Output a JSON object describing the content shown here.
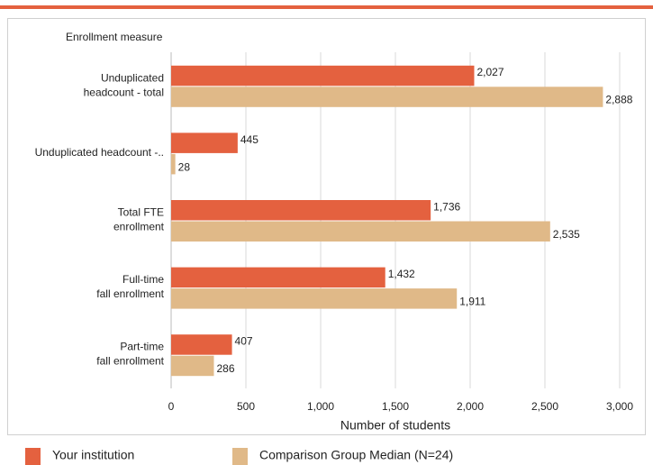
{
  "chart_data": {
    "type": "bar",
    "orientation": "horizontal",
    "title": "Enrollment measure",
    "xlabel": "Number of students",
    "categories": [
      "Unduplicated\nheadcount - total",
      "Unduplicated headcount -..",
      "Total FTE\nenrollment",
      "Full-time\nfall enrollment",
      "Part-time\nfall enrollment"
    ],
    "series": [
      {
        "name": "Your institution",
        "color": "#e4613f",
        "values": [
          2027,
          445,
          1736,
          1432,
          407
        ],
        "value_labels": [
          "2,027",
          "445",
          "1,736",
          "1,432",
          "407"
        ]
      },
      {
        "name": "Comparison Group Median (N=24)",
        "color": "#e0b988",
        "values": [
          2888,
          28,
          2535,
          1911,
          286
        ],
        "value_labels": [
          "2,888",
          "28",
          "2,535",
          "1,911",
          "286"
        ]
      }
    ],
    "xlim": [
      0,
      3000
    ],
    "xticks": [
      0,
      500,
      {
        "value": 1000,
        "label": "1,000"
      },
      {
        "value": 1500,
        "label": "1,500"
      },
      {
        "value": 2000,
        "label": "2,000"
      },
      {
        "value": 2500,
        "label": "2,500"
      },
      {
        "value": 3000,
        "label": "3,000"
      }
    ],
    "grid": true
  }
}
